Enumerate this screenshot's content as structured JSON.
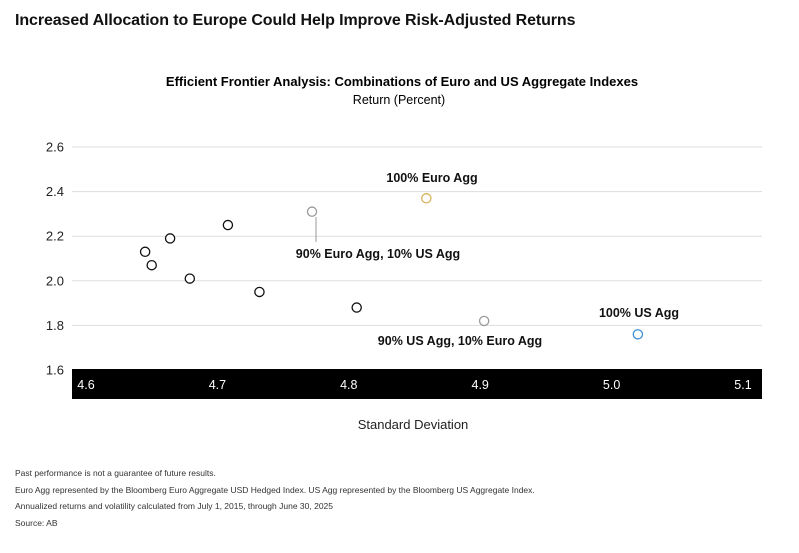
{
  "page": {
    "title": "Increased Allocation to Europe Could Help Improve Risk-Adjusted Returns"
  },
  "chart_data": {
    "type": "scatter",
    "title": "Efficient Frontier Analysis: Combinations of Euro and US Aggregate Indexes",
    "ylabel": "Return (Percent)",
    "xlabel": "Standard Deviation",
    "xlim": [
      4.6,
      5.1
    ],
    "ylim": [
      1.6,
      2.6
    ],
    "x_ticks": [
      "4.6",
      "4.7",
      "4.8",
      "4.9",
      "5.0",
      "5.1"
    ],
    "y_ticks": [
      "1.6",
      "1.8",
      "2.0",
      "2.2",
      "2.4",
      "2.6"
    ],
    "grid": true,
    "colors": {
      "default_marker": "#111111",
      "euro_agg": "#d8b25a",
      "us_agg": "#3b8fd6",
      "blend_highlight": "#9a9a9a",
      "axis_band": "#000000",
      "grid": "#dddddd"
    },
    "points": [
      {
        "x": 4.859,
        "y": 2.37,
        "color": "euro_agg"
      },
      {
        "x": 4.772,
        "y": 2.31,
        "color": "blend_highlight"
      },
      {
        "x": 4.708,
        "y": 2.25,
        "color": "default_marker"
      },
      {
        "x": 4.664,
        "y": 2.19,
        "color": "default_marker"
      },
      {
        "x": 4.645,
        "y": 2.13,
        "color": "default_marker"
      },
      {
        "x": 4.65,
        "y": 2.07,
        "color": "default_marker"
      },
      {
        "x": 4.679,
        "y": 2.01,
        "color": "default_marker"
      },
      {
        "x": 4.732,
        "y": 1.95,
        "color": "default_marker"
      },
      {
        "x": 4.806,
        "y": 1.88,
        "color": "default_marker"
      },
      {
        "x": 4.903,
        "y": 1.82,
        "color": "blend_highlight"
      },
      {
        "x": 5.02,
        "y": 1.76,
        "color": "us_agg"
      }
    ],
    "annotations": [
      {
        "text": "100% Euro Agg"
      },
      {
        "text": "90% Euro Agg, 10% US Agg"
      },
      {
        "text": "100% US Agg"
      },
      {
        "text": "90% US Agg, 10% Euro Agg"
      }
    ]
  },
  "footnotes": [
    "Past performance is not a guarantee of future results.",
    "Euro Agg represented by the Bloomberg Euro Aggregate USD Hedged Index. US Agg represented by the Bloomberg US Aggregate Index.",
    "Annualized returns and volatility calculated from July 1, 2015, through June 30, 2025",
    "Source: AB"
  ]
}
